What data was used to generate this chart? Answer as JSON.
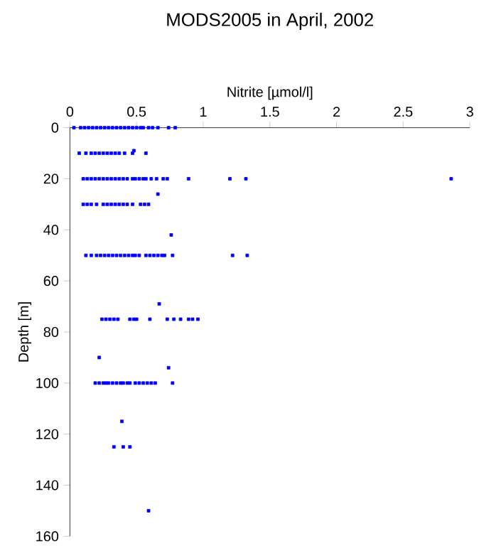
{
  "chart_data": {
    "type": "scatter",
    "title": "MODS2005 in April, 2002",
    "xlabel": "Nitrite [µmol/l]",
    "ylabel": "Depth [m]",
    "x": [
      0.03,
      0.08,
      0.11,
      0.14,
      0.17,
      0.2,
      0.23,
      0.26,
      0.29,
      0.32,
      0.35,
      0.38,
      0.41,
      0.44,
      0.47,
      0.5,
      0.53,
      0.55,
      0.59,
      0.62,
      0.66,
      0.74,
      0.79,
      0.07,
      0.12,
      0.16,
      0.19,
      0.22,
      0.25,
      0.28,
      0.31,
      0.34,
      0.37,
      0.41,
      0.47,
      0.48,
      0.57,
      0.1,
      0.13,
      0.16,
      0.19,
      0.22,
      0.25,
      0.28,
      0.31,
      0.34,
      0.37,
      0.4,
      0.43,
      0.47,
      0.49,
      0.52,
      0.55,
      0.57,
      0.61,
      0.65,
      0.7,
      0.73,
      0.89,
      1.2,
      1.32,
      2.86,
      0.66,
      0.1,
      0.13,
      0.16,
      0.2,
      0.25,
      0.28,
      0.31,
      0.34,
      0.37,
      0.4,
      0.43,
      0.47,
      0.53,
      0.56,
      0.59,
      0.76,
      0.12,
      0.16,
      0.2,
      0.23,
      0.26,
      0.29,
      0.32,
      0.35,
      0.38,
      0.41,
      0.44,
      0.47,
      0.49,
      0.52,
      0.57,
      0.6,
      0.63,
      0.66,
      0.69,
      0.71,
      0.77,
      1.22,
      1.33,
      0.67,
      0.24,
      0.27,
      0.3,
      0.33,
      0.36,
      0.45,
      0.48,
      0.5,
      0.6,
      0.73,
      0.78,
      0.83,
      0.89,
      0.92,
      0.96,
      0.22,
      0.74,
      0.19,
      0.22,
      0.25,
      0.27,
      0.29,
      0.32,
      0.35,
      0.38,
      0.4,
      0.43,
      0.45,
      0.49,
      0.52,
      0.55,
      0.58,
      0.61,
      0.64,
      0.77,
      0.39,
      0.33,
      0.4,
      0.45,
      0.59
    ],
    "values": [
      0,
      0,
      0,
      0,
      0,
      0,
      0,
      0,
      0,
      0,
      0,
      0,
      0,
      0,
      0,
      0,
      0,
      0,
      0,
      0,
      0,
      0,
      0,
      10,
      10,
      10,
      10,
      10,
      10,
      10,
      10,
      10,
      10,
      10,
      10,
      9,
      10,
      20,
      20,
      20,
      20,
      20,
      20,
      20,
      20,
      20,
      20,
      20,
      20,
      20,
      20,
      20,
      20,
      20,
      20,
      20,
      20,
      20,
      20,
      20,
      20,
      20,
      26,
      30,
      30,
      30,
      30,
      30,
      30,
      30,
      30,
      30,
      30,
      30,
      30,
      30,
      30,
      30,
      42,
      50,
      50,
      50,
      50,
      50,
      50,
      50,
      50,
      50,
      50,
      50,
      50,
      50,
      50,
      50,
      50,
      50,
      50,
      50,
      50,
      50,
      50,
      50,
      69,
      75,
      75,
      75,
      75,
      75,
      75,
      75,
      75,
      75,
      75,
      75,
      75,
      75,
      75,
      75,
      90,
      94,
      100,
      100,
      100,
      100,
      100,
      100,
      100,
      100,
      100,
      100,
      100,
      100,
      100,
      100,
      100,
      100,
      100,
      100,
      115,
      125,
      125,
      125,
      150
    ],
    "color": "#0000ff",
    "marker": "square",
    "xlim": [
      0,
      3
    ],
    "xticks": [
      0,
      0.5,
      1,
      1.5,
      2,
      2.5,
      3
    ],
    "ylim": [
      160,
      0
    ],
    "yticks": [
      0,
      20,
      40,
      60,
      80,
      100,
      120,
      140,
      160
    ]
  }
}
